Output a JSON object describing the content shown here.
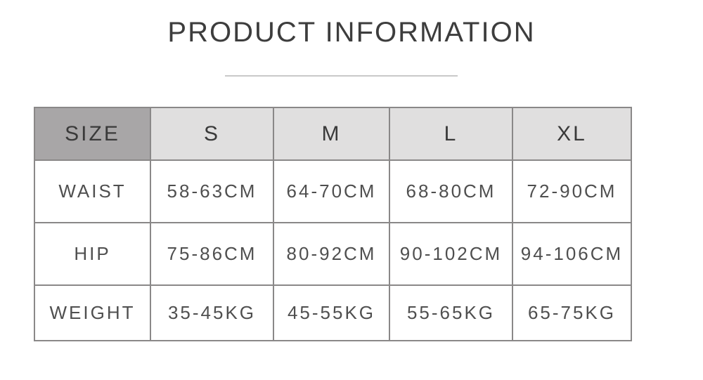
{
  "title": "PRODUCT INFORMATION",
  "size_chart": {
    "columns": [
      "SIZE",
      "S",
      "M",
      "L",
      "XL"
    ],
    "rows": [
      {
        "label": "WAIST",
        "values": [
          "58-63CM",
          "64-70CM",
          "68-80CM",
          "72-90CM"
        ]
      },
      {
        "label": "HIP",
        "values": [
          "75-86CM",
          "80-92CM",
          "90-102CM",
          "94-106CM"
        ]
      },
      {
        "label": "WEIGHT",
        "values": [
          "35-45KG",
          "45-55KG",
          "55-65KG",
          "65-75KG"
        ]
      }
    ]
  },
  "colors": {
    "title_text": "#3d3d3d",
    "divider": "#c9c9c9",
    "size_header_bg": "#a8a6a7",
    "column_header_bg": "#e0dfdf",
    "table_border": "#8a8888",
    "header_text": "#3a3a3a",
    "cell_text": "#4f4f4f"
  }
}
